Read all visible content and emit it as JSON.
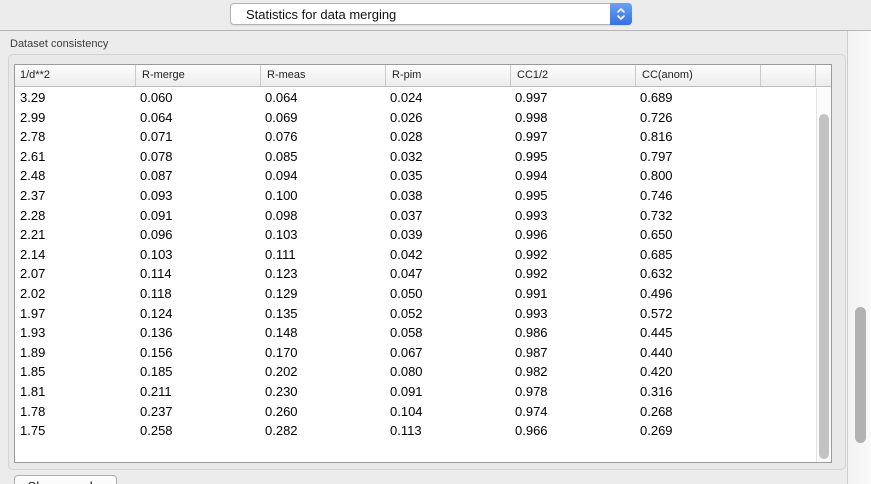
{
  "toolbar": {
    "mode_select": {
      "value": "Statistics for data merging"
    }
  },
  "group": {
    "title": "Dataset consistency"
  },
  "table": {
    "columns": [
      "1/d**2",
      "R-merge",
      "R-meas",
      "R-pim",
      "CC1/2",
      "CC(anom)"
    ],
    "rows": [
      [
        "3.29",
        "0.060",
        "0.064",
        "0.024",
        "0.997",
        "0.689"
      ],
      [
        "2.99",
        "0.064",
        "0.069",
        "0.026",
        "0.998",
        "0.726"
      ],
      [
        "2.78",
        "0.071",
        "0.076",
        "0.028",
        "0.997",
        "0.816"
      ],
      [
        "2.61",
        "0.078",
        "0.085",
        "0.032",
        "0.995",
        "0.797"
      ],
      [
        "2.48",
        "0.087",
        "0.094",
        "0.035",
        "0.994",
        "0.800"
      ],
      [
        "2.37",
        "0.093",
        "0.100",
        "0.038",
        "0.995",
        "0.746"
      ],
      [
        "2.28",
        "0.091",
        "0.098",
        "0.037",
        "0.993",
        "0.732"
      ],
      [
        "2.21",
        "0.096",
        "0.103",
        "0.039",
        "0.996",
        "0.650"
      ],
      [
        "2.14",
        "0.103",
        "0.111",
        "0.042",
        "0.992",
        "0.685"
      ],
      [
        "2.07",
        "0.114",
        "0.123",
        "0.047",
        "0.992",
        "0.632"
      ],
      [
        "2.02",
        "0.118",
        "0.129",
        "0.050",
        "0.991",
        "0.496"
      ],
      [
        "1.97",
        "0.124",
        "0.135",
        "0.052",
        "0.993",
        "0.572"
      ],
      [
        "1.93",
        "0.136",
        "0.148",
        "0.058",
        "0.986",
        "0.445"
      ],
      [
        "1.89",
        "0.156",
        "0.170",
        "0.067",
        "0.987",
        "0.440"
      ],
      [
        "1.85",
        "0.185",
        "0.202",
        "0.080",
        "0.982",
        "0.420"
      ],
      [
        "1.81",
        "0.211",
        "0.230",
        "0.091",
        "0.978",
        "0.316"
      ],
      [
        "1.78",
        "0.237",
        "0.260",
        "0.104",
        "0.974",
        "0.268"
      ],
      [
        "1.75",
        "0.258",
        "0.282",
        "0.113",
        "0.966",
        "0.269"
      ]
    ]
  },
  "footer": {
    "show_graphs_label": "Show graphs"
  },
  "colors": {
    "accent_blue": "#3570e2",
    "window_background": "#ececec",
    "table_border": "#9b9b9b",
    "scrollbar_thumb": "#b2b2b2"
  }
}
